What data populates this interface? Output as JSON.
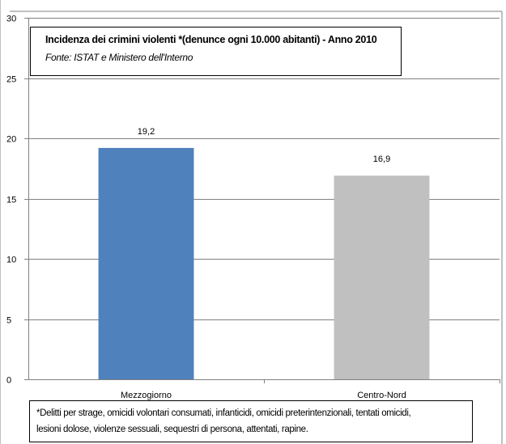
{
  "chart_data": {
    "type": "bar",
    "title": "Incidenza dei crimini violenti *(denunce ogni 10.000 abitanti) - Anno 2010",
    "subtitle": "Fonte: ISTAT e Ministero dell'Interno",
    "categories": [
      "Mezzogiorno",
      "Centro-Nord"
    ],
    "values": [
      19.2,
      16.9
    ],
    "value_labels": [
      "19,2",
      "16,9"
    ],
    "bar_colors": [
      "#4f81bd",
      "#c0c0c0"
    ],
    "ylim": [
      0,
      30
    ],
    "yticks": [
      0,
      5,
      10,
      15,
      20,
      25,
      30
    ],
    "grid": true,
    "xlabel": "",
    "ylabel": ""
  },
  "footnote": {
    "line1": "*Delitti per strage, omicidi volontari consumati, infanticidi, omicidi preterintenzionali, tentati omicidi,",
    "line2": "lesioni dolose,  violenze sessuali, sequestri di persona, attentati, rapine."
  }
}
